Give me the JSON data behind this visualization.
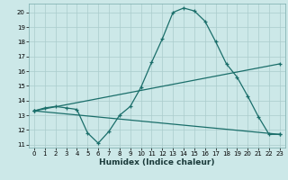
{
  "title": "",
  "xlabel": "Humidex (Indice chaleur)",
  "bg_color": "#cce8e8",
  "grid_color": "#aacccc",
  "line_color": "#1a6e6a",
  "xlim": [
    -0.5,
    23.5
  ],
  "ylim": [
    10.8,
    20.6
  ],
  "xticks": [
    0,
    1,
    2,
    3,
    4,
    5,
    6,
    7,
    8,
    9,
    10,
    11,
    12,
    13,
    14,
    15,
    16,
    17,
    18,
    19,
    20,
    21,
    22,
    23
  ],
  "yticks": [
    11,
    12,
    13,
    14,
    15,
    16,
    17,
    18,
    19,
    20
  ],
  "line1_x": [
    0,
    1,
    2,
    3,
    4,
    5,
    6,
    7,
    8,
    9,
    10,
    11,
    12,
    13,
    14,
    15,
    16,
    17,
    18,
    19,
    20,
    21,
    22,
    23
  ],
  "line1_y": [
    13.3,
    13.5,
    13.6,
    13.5,
    13.4,
    11.8,
    11.1,
    11.9,
    13.0,
    13.6,
    14.9,
    16.6,
    18.2,
    20.0,
    20.3,
    20.1,
    19.4,
    18.0,
    16.5,
    15.6,
    14.3,
    12.9,
    11.7,
    11.7
  ],
  "line2_x": [
    0,
    23
  ],
  "line2_y": [
    13.3,
    16.5
  ],
  "line3_x": [
    0,
    23
  ],
  "line3_y": [
    13.3,
    11.7
  ],
  "xlabel_fontsize": 6.5,
  "tick_fontsize": 5.0
}
